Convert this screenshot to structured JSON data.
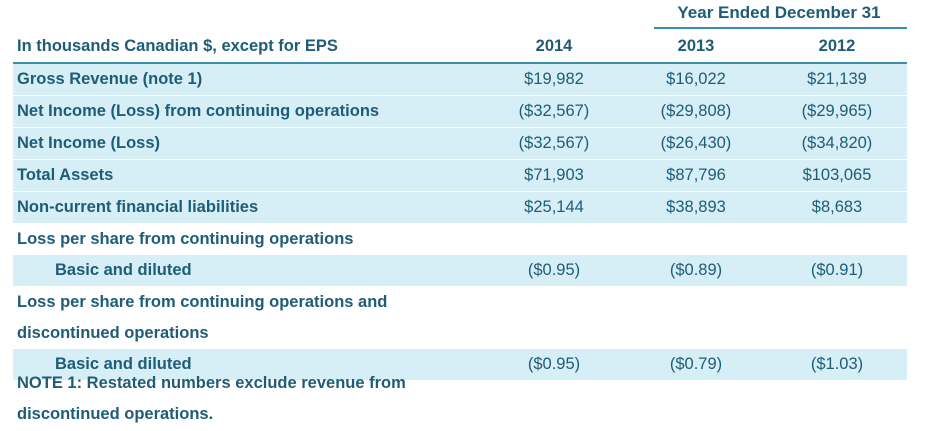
{
  "header": {
    "period": "Year Ended December 31",
    "label": "In thousands Canadian $, except for EPS",
    "years": [
      "2014",
      "2013",
      "2012"
    ]
  },
  "rows": [
    {
      "label": "Gross Revenue (note 1)",
      "values": [
        "$19,982",
        "$16,022",
        "$21,139"
      ]
    },
    {
      "label": "Net Income (Loss) from continuing operations",
      "values": [
        "($32,567)",
        "($29,808)",
        "($29,965)"
      ]
    },
    {
      "label": "Net Income (Loss)",
      "values": [
        "($32,567)",
        "($26,430)",
        "($34,820)"
      ]
    },
    {
      "label": "Total Assets",
      "values": [
        "$71,903",
        "$87,796",
        "$103,065"
      ]
    },
    {
      "label": "Non-current financial liabilities",
      "values": [
        "$25,144",
        "$38,893",
        "$8,683"
      ]
    },
    {
      "label": "Loss per share from continuing operations"
    },
    {
      "label": "Basic and diluted",
      "values": [
        "($0.95)",
        "($0.89)",
        "($0.91)"
      ]
    },
    {
      "label": "Loss per share from continuing operations and"
    },
    {
      "label": "discontinued operations"
    },
    {
      "label": "Basic and diluted",
      "values": [
        "($0.95)",
        "($0.79)",
        "($1.03)"
      ]
    }
  ],
  "note": {
    "line1": "NOTE 1:  Restated numbers exclude revenue from",
    "line2": "discontinued operations."
  },
  "colors": {
    "text": "#1f5c78",
    "row_shade": "#d6eef5",
    "rule": "#3a8db0"
  }
}
